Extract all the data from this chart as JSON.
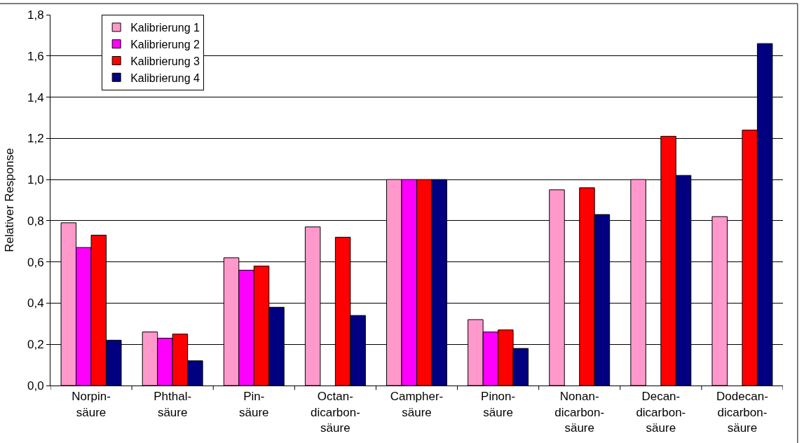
{
  "chart_data": {
    "type": "bar",
    "ylabel": "Relativer Response",
    "categories": [
      "Norpin-\nsäure",
      "Phthal-\nsäure",
      "Pin-\nsäure",
      "Octan-\ndicarbon-\nsäure",
      "Campher-\nsäure",
      "Pinon-\nsäure",
      "Nonan-\ndicarbon-\nsäure",
      "Decan-\ndicarbon-\nsäure",
      "Dodecan-\ndicarbon-\nsäure"
    ],
    "series": [
      {
        "name": "Kalibrierung 1",
        "color": "#ff99cc",
        "values": [
          0.79,
          0.26,
          0.62,
          0.77,
          1.0,
          0.32,
          0.95,
          1.0,
          0.82
        ]
      },
      {
        "name": "Kalibrierung 2",
        "color": "#ff00ff",
        "values": [
          0.67,
          0.23,
          0.56,
          null,
          1.0,
          0.26,
          null,
          null,
          null
        ]
      },
      {
        "name": "Kalibrierung 3",
        "color": "#ff0000",
        "values": [
          0.73,
          0.25,
          0.58,
          0.72,
          1.0,
          0.27,
          0.96,
          1.21,
          1.24
        ]
      },
      {
        "name": "Kalibrierung 4",
        "color": "#000080",
        "values": [
          0.22,
          0.12,
          0.38,
          0.34,
          1.0,
          0.18,
          0.83,
          1.02,
          1.66
        ]
      }
    ],
    "ylim": [
      0,
      1.8
    ],
    "yticks": [
      {
        "value": 0,
        "label": "0,0"
      },
      {
        "value": 0.2,
        "label": "0,2"
      },
      {
        "value": 0.4,
        "label": "0,4"
      },
      {
        "value": 0.6,
        "label": "0,6"
      },
      {
        "value": 0.8,
        "label": "0,8"
      },
      {
        "value": 1.0,
        "label": "1,0"
      },
      {
        "value": 1.2,
        "label": "1,2"
      },
      {
        "value": 1.4,
        "label": "1,4"
      },
      {
        "value": 1.6,
        "label": "1,6"
      },
      {
        "value": 1.8,
        "label": "1,8"
      }
    ],
    "grid": "y",
    "legend": "top left"
  }
}
